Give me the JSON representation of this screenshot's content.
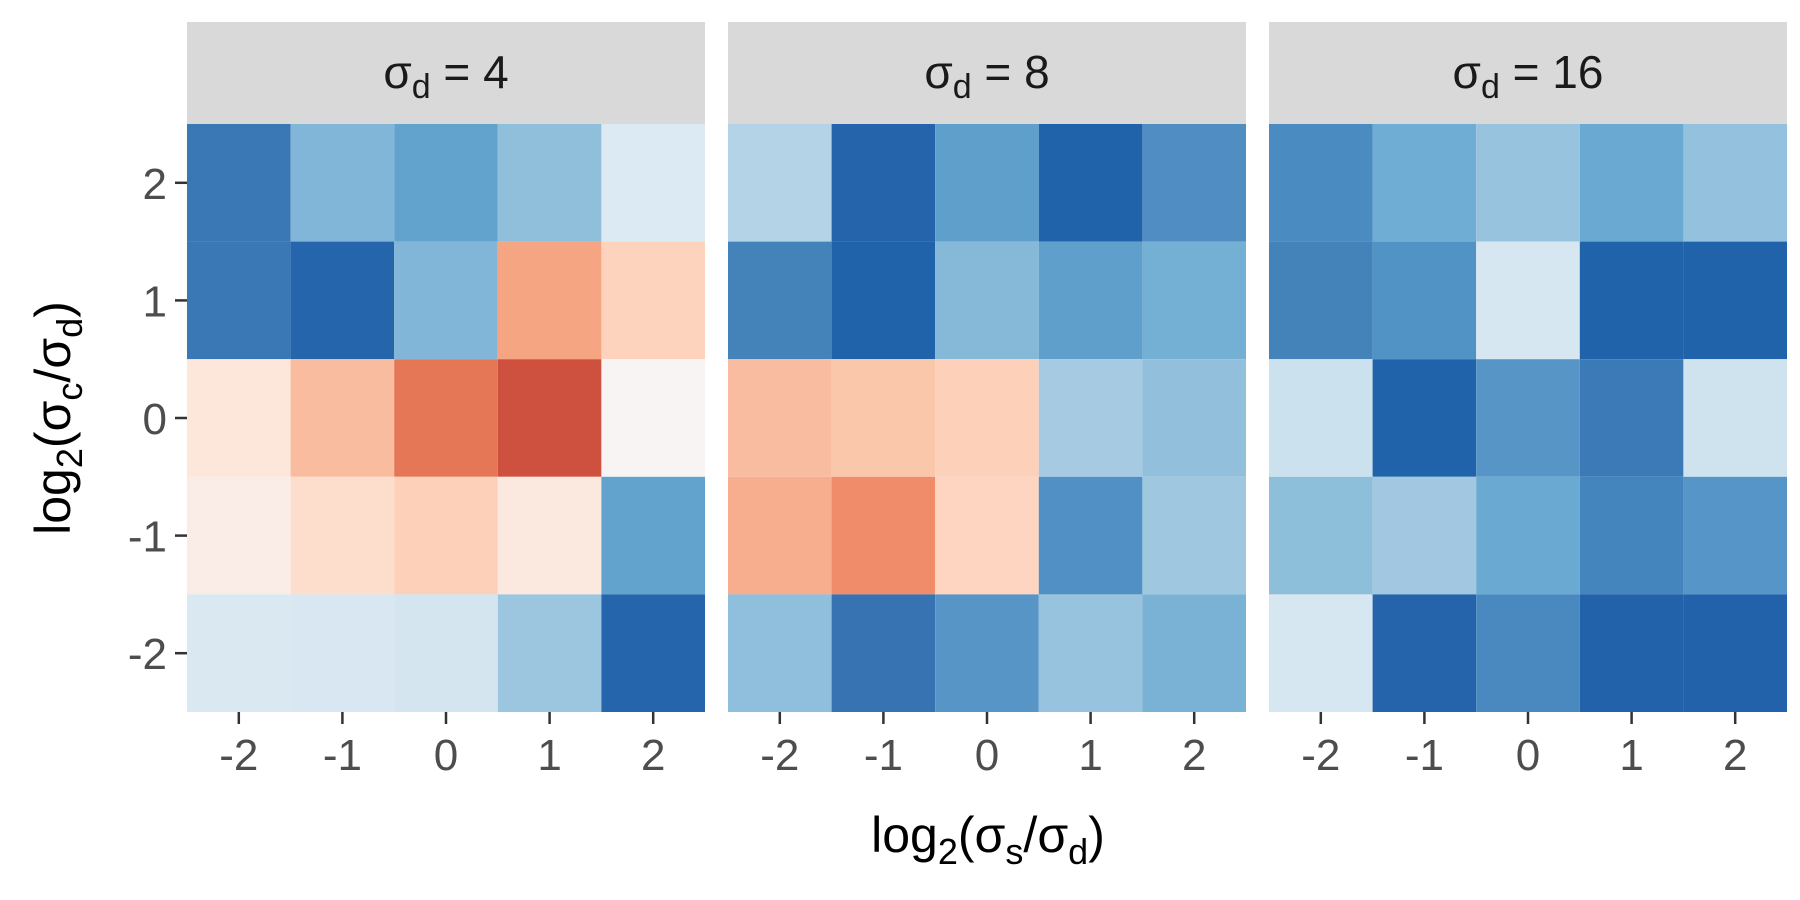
{
  "chart_data": {
    "type": "heatmap",
    "facet_var": "σd",
    "facets": [
      {
        "label_main": "σ",
        "label_sub": "d",
        "label_rest": " = 4",
        "rows": [
          {
            "y": 2,
            "colors": [
              "#3a77b5",
              "#81b6d8",
              "#62a3cd",
              "#90bfdc",
              "#dceaf3"
            ]
          },
          {
            "y": 1,
            "colors": [
              "#3a77b5",
              "#2565ac",
              "#81b6d8",
              "#f5a582",
              "#fdd3bd"
            ]
          },
          {
            "y": 0,
            "colors": [
              "#fde6da",
              "#f9bc9f",
              "#e57757",
              "#ce5140",
              "#f7f4f3"
            ]
          },
          {
            "y": -1,
            "colors": [
              "#faede8",
              "#fdddcc",
              "#fdd0ba",
              "#fbe9df",
              "#62a3cd"
            ]
          },
          {
            "y": -2,
            "colors": [
              "#dae8f2",
              "#d8e7f1",
              "#d5e5f0",
              "#9cc5df",
              "#2565ac"
            ]
          }
        ]
      },
      {
        "label_main": "σ",
        "label_sub": "d",
        "label_rest": " = 8",
        "rows": [
          {
            "y": 2,
            "colors": [
              "#b4d3e7",
              "#2564ab",
              "#5e9fcb",
              "#2163aa",
              "#4f8dc2"
            ]
          },
          {
            "y": 1,
            "colors": [
              "#4483ba",
              "#2163aa",
              "#86b8d8",
              "#5e9fcb",
              "#74afd4"
            ]
          },
          {
            "y": 0,
            "colors": [
              "#f9bca0",
              "#fbc7ab",
              "#fcd0b9",
              "#a6cae2",
              "#92bfdb"
            ]
          },
          {
            "y": -1,
            "colors": [
              "#f7ae8f",
              "#f08c69",
              "#fdd5c0",
              "#5190c4",
              "#a0c7e0"
            ]
          },
          {
            "y": -2,
            "colors": [
              "#8fbfdc",
              "#3773b3",
              "#5895c7",
              "#98c3df",
              "#7ab2d6"
            ]
          }
        ]
      },
      {
        "label_main": "σ",
        "label_sub": "d",
        "label_rest": " = 16",
        "rows": [
          {
            "y": 2,
            "colors": [
              "#4a8bc1",
              "#6fadd4",
              "#98c3df",
              "#6aaad2",
              "#94c1dd"
            ]
          },
          {
            "y": 1,
            "colors": [
              "#4483ba",
              "#5293c6",
              "#d7e7f1",
              "#2163aa",
              "#2163aa"
            ]
          },
          {
            "y": 0,
            "colors": [
              "#cbe1ee",
              "#2163aa",
              "#5895c7",
              "#3c79b7",
              "#cfe3ef"
            ]
          },
          {
            "y": -1,
            "colors": [
              "#8dbeda",
              "#a2c8e1",
              "#6aaad2",
              "#4585bd",
              "#5595c7"
            ]
          },
          {
            "y": -2,
            "colors": [
              "#d7e7f1",
              "#2564ab",
              "#4a89c0",
              "#2262aa",
              "#2262aa"
            ]
          }
        ]
      }
    ],
    "x_values": [
      -2,
      -1,
      0,
      1,
      2
    ],
    "y_values": [
      2,
      1,
      0,
      -1,
      -2
    ],
    "x_tick_labels": [
      "-2",
      "-1",
      "0",
      "1",
      "2"
    ],
    "y_tick_labels": [
      "2",
      "1",
      "0",
      "-1",
      "-2"
    ],
    "xlim": [
      -2.5,
      2.5
    ],
    "ylim": [
      -2.5,
      2.5
    ],
    "xlabel": {
      "prefix": "log",
      "prefix_sub": "2",
      "open": "(",
      "num": "σ",
      "num_sub": "s",
      "slash": "/",
      "den": "σ",
      "den_sub": "d",
      "close": ")"
    },
    "ylabel": {
      "prefix": "log",
      "prefix_sub": "2",
      "open": "(",
      "num": "σ",
      "num_sub": "c",
      "slash": "/",
      "den": "σ",
      "den_sub": "d",
      "close": ")"
    },
    "panel_background": "#ebebeb",
    "strip_background": "#d9d9d9",
    "grid": true,
    "legend": "none"
  }
}
